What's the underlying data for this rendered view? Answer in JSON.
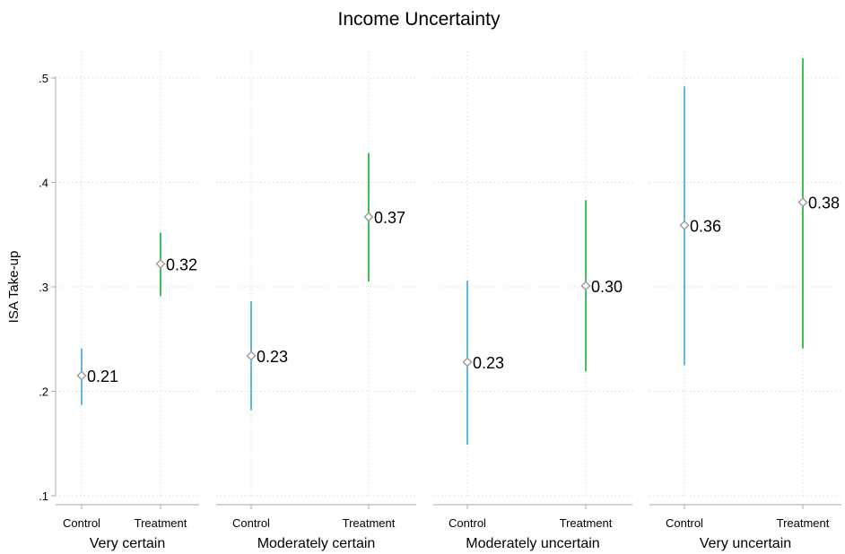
{
  "chart_data": {
    "type": "error_bar_panels",
    "title": "Income Uncertainty",
    "ylabel": "ISA Take-up",
    "ylim": [
      0.1,
      0.5
    ],
    "yticks": [
      0.1,
      0.2,
      0.3,
      0.4,
      0.5
    ],
    "ytick_labels": [
      ".1",
      ".2",
      ".3",
      ".4",
      ".5"
    ],
    "grid": true,
    "colors": {
      "Control": "#5DB8EA",
      "Treatment": "#3DC35A",
      "marker": "#A0A0A0"
    },
    "panels": [
      {
        "label": "Very certain",
        "groups": [
          {
            "name": "Control",
            "value": 0.215,
            "low": 0.187,
            "high": 0.241,
            "value_label": "0.21"
          },
          {
            "name": "Treatment",
            "value": 0.322,
            "low": 0.291,
            "high": 0.352,
            "value_label": "0.32"
          }
        ]
      },
      {
        "label": "Moderately certain",
        "groups": [
          {
            "name": "Control",
            "value": 0.234,
            "low": 0.182,
            "high": 0.286,
            "value_label": "0.23"
          },
          {
            "name": "Treatment",
            "value": 0.367,
            "low": 0.305,
            "high": 0.428,
            "value_label": "0.37"
          }
        ]
      },
      {
        "label": "Moderately uncertain",
        "groups": [
          {
            "name": "Control",
            "value": 0.228,
            "low": 0.149,
            "high": 0.306,
            "value_label": "0.23"
          },
          {
            "name": "Treatment",
            "value": 0.301,
            "low": 0.219,
            "high": 0.383,
            "value_label": "0.30"
          }
        ]
      },
      {
        "label": "Very uncertain",
        "groups": [
          {
            "name": "Control",
            "value": 0.359,
            "low": 0.225,
            "high": 0.492,
            "value_label": "0.36"
          },
          {
            "name": "Treatment",
            "value": 0.381,
            "low": 0.241,
            "high": 0.519,
            "value_label": "0.38"
          }
        ]
      }
    ]
  }
}
